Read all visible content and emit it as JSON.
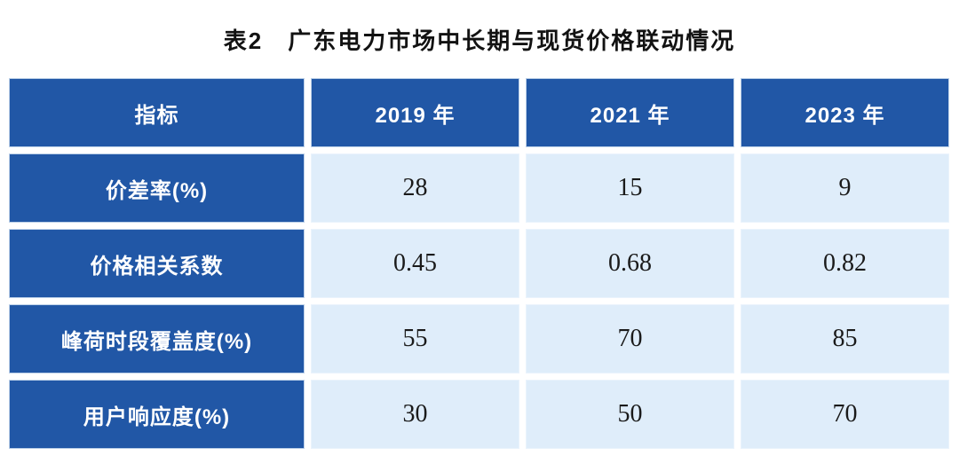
{
  "title": "表2　广东电力市场中长期与现货价格联动情况",
  "colors": {
    "header_cell_bg": "#2157A6",
    "value_cell_bg": "#DFEDFA",
    "header_text": "#FFFFFF",
    "value_text": "#1A1A1A",
    "page_bg": "#FFFFFF"
  },
  "table": {
    "columns": [
      "指标",
      "2019 年",
      "2021 年",
      "2023 年"
    ],
    "rows": [
      {
        "label": "价差率(%)",
        "values": [
          "28",
          "15",
          "9"
        ]
      },
      {
        "label": "价格相关系数",
        "values": [
          "0.45",
          "0.68",
          "0.82"
        ]
      },
      {
        "label": "峰荷时段覆盖度(%)",
        "values": [
          "55",
          "70",
          "85"
        ]
      },
      {
        "label": "用户响应度(%)",
        "values": [
          "30",
          "50",
          "70"
        ]
      }
    ]
  },
  "chart_data": {
    "type": "table",
    "title": "表2　广东电力市场中长期与现货价格联动情况",
    "columns": [
      "指标",
      "2019年",
      "2021年",
      "2023年"
    ],
    "rows": [
      [
        "价差率(%)",
        28,
        15,
        9
      ],
      [
        "价格相关系数",
        0.45,
        0.68,
        0.82
      ],
      [
        "峰荷时段覆盖度(%)",
        55,
        70,
        85
      ],
      [
        "用户响应度(%)",
        30,
        50,
        70
      ]
    ],
    "series": [
      {
        "name": "2019年",
        "values": [
          28,
          0.45,
          55,
          30
        ]
      },
      {
        "name": "2021年",
        "values": [
          15,
          0.68,
          70,
          50
        ]
      },
      {
        "name": "2023年",
        "values": [
          9,
          0.82,
          85,
          70
        ]
      }
    ],
    "categories": [
      "价差率(%)",
      "价格相关系数",
      "峰荷时段覆盖度(%)",
      "用户响应度(%)"
    ]
  }
}
